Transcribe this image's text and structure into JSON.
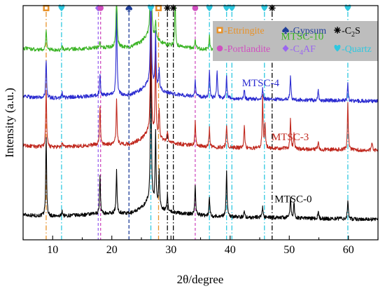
{
  "chart_data": {
    "type": "line",
    "xlabel": "2θ/degree",
    "ylabel": "Intensity (a.u.)",
    "xlim": [
      5,
      65
    ],
    "ylim": [
      0,
      10
    ],
    "x_ticks": [
      10,
      20,
      30,
      40,
      50,
      60
    ],
    "y_ticks": [],
    "grid": false,
    "baseline_points": [
      [
        5,
        1.08
      ],
      [
        7,
        1.03
      ],
      [
        9,
        1.01
      ],
      [
        11,
        1.0
      ],
      [
        13,
        1.04
      ],
      [
        15,
        1.06
      ],
      [
        17,
        1.1
      ],
      [
        19,
        1.12
      ],
      [
        21,
        1.15
      ],
      [
        23,
        1.12
      ],
      [
        25,
        1.35
      ],
      [
        26,
        1.6
      ],
      [
        27,
        1.5
      ],
      [
        29,
        1.25
      ],
      [
        31,
        1.15
      ],
      [
        33,
        1.1
      ],
      [
        35,
        1.05
      ],
      [
        37,
        1.0
      ],
      [
        39,
        1.0
      ],
      [
        41,
        0.98
      ],
      [
        43,
        0.95
      ],
      [
        45,
        0.96
      ],
      [
        47,
        0.95
      ],
      [
        49,
        0.95
      ],
      [
        51,
        0.92
      ],
      [
        53,
        0.92
      ],
      [
        55,
        0.9
      ],
      [
        57,
        0.9
      ],
      [
        59,
        0.9
      ],
      [
        61,
        0.88
      ],
      [
        63,
        0.88
      ],
      [
        65,
        0.87
      ]
    ],
    "series": [
      {
        "name": "MTSC-0",
        "color": "#000000",
        "offset": 0.0,
        "label_x": 47.5,
        "label_y": 1.6,
        "peaks": [
          [
            8.9,
            3.3
          ],
          [
            11.6,
            0.25
          ],
          [
            18.0,
            1.6
          ],
          [
            20.8,
            1.8
          ],
          [
            26.6,
            7.5
          ],
          [
            27.4,
            3.2
          ],
          [
            28.0,
            1.5
          ],
          [
            29.4,
            0.7
          ],
          [
            34.1,
            1.3
          ],
          [
            36.5,
            0.8
          ],
          [
            39.4,
            2.0
          ],
          [
            42.4,
            0.3
          ],
          [
            45.5,
            0.45
          ],
          [
            50.2,
            0.9
          ],
          [
            50.8,
            0.7
          ],
          [
            54.9,
            0.35
          ],
          [
            59.9,
            0.8
          ]
        ]
      },
      {
        "name": "MTSC-3",
        "color": "#c0281e",
        "offset": 2.95,
        "label_x": 47.0,
        "label_y": 4.25,
        "peaks": [
          [
            8.9,
            2.4
          ],
          [
            11.6,
            0.2
          ],
          [
            18.0,
            1.6
          ],
          [
            20.8,
            1.9
          ],
          [
            26.6,
            7.0
          ],
          [
            27.4,
            3.6
          ],
          [
            28.0,
            1.2
          ],
          [
            29.4,
            0.5
          ],
          [
            34.1,
            1.0
          ],
          [
            36.5,
            0.8
          ],
          [
            39.4,
            1.0
          ],
          [
            42.4,
            1.0
          ],
          [
            45.5,
            2.2
          ],
          [
            45.9,
            1.0
          ],
          [
            50.2,
            1.3
          ],
          [
            50.8,
            0.7
          ],
          [
            54.9,
            0.4
          ],
          [
            59.9,
            2.0
          ],
          [
            64.0,
            0.35
          ]
        ]
      },
      {
        "name": "MTSC-4",
        "color": "#2b2bd0",
        "offset": 5.05,
        "label_x": 42.0,
        "label_y": 6.55,
        "peaks": [
          [
            8.9,
            1.6
          ],
          [
            11.6,
            0.2
          ],
          [
            18.0,
            0.9
          ],
          [
            20.8,
            3.8
          ],
          [
            26.6,
            5.8
          ],
          [
            27.4,
            2.4
          ],
          [
            28.0,
            0.8
          ],
          [
            34.1,
            0.7
          ],
          [
            36.5,
            1.2
          ],
          [
            37.8,
            1.2
          ],
          [
            39.4,
            0.9
          ],
          [
            42.4,
            0.4
          ],
          [
            45.5,
            0.45
          ],
          [
            50.2,
            1.0
          ],
          [
            54.9,
            0.4
          ],
          [
            59.9,
            0.7
          ]
        ]
      },
      {
        "name": "MTSC-10",
        "color": "#3cb426",
        "offset": 7.1,
        "label_x": 48.6,
        "label_y": 8.55,
        "peaks": [
          [
            8.9,
            0.9
          ],
          [
            11.6,
            0.15
          ],
          [
            18.0,
            0.25
          ],
          [
            20.8,
            3.0
          ],
          [
            26.6,
            7.0
          ],
          [
            27.4,
            0.8
          ],
          [
            30.7,
            2.0
          ],
          [
            34.1,
            0.4
          ],
          [
            36.5,
            0.6
          ],
          [
            39.4,
            0.5
          ],
          [
            40.2,
            0.6
          ],
          [
            42.4,
            1.0
          ],
          [
            45.5,
            0.4
          ],
          [
            50.2,
            0.9
          ],
          [
            54.9,
            0.3
          ],
          [
            59.9,
            0.6
          ]
        ]
      }
    ],
    "reference_lines": [
      {
        "x": 8.9,
        "phase": "ettringite"
      },
      {
        "x": 11.5,
        "phase": "quartz"
      },
      {
        "x": 17.7,
        "phase": "c4af"
      },
      {
        "x": 18.1,
        "phase": "portlandite"
      },
      {
        "x": 22.9,
        "phase": "gypsum"
      },
      {
        "x": 26.6,
        "phase": "quartz"
      },
      {
        "x": 27.9,
        "phase": "ettringite"
      },
      {
        "x": 29.4,
        "phase": "c2s"
      },
      {
        "x": 30.4,
        "phase": "c2s"
      },
      {
        "x": 34.1,
        "phase": "portlandite"
      },
      {
        "x": 36.5,
        "phase": "quartz"
      },
      {
        "x": 39.4,
        "phase": "quartz"
      },
      {
        "x": 40.3,
        "phase": "quartz"
      },
      {
        "x": 45.8,
        "phase": "quartz"
      },
      {
        "x": 47.1,
        "phase": "c2s"
      },
      {
        "x": 59.9,
        "phase": "quartz"
      }
    ],
    "phases": {
      "ettringite": {
        "label": "-Ettringite",
        "color": "#e8922a",
        "marker": "square-outline"
      },
      "gypsum": {
        "label": "-Gypsum",
        "color": "#1f3e99",
        "marker": "spade"
      },
      "c2s": {
        "label": "-C",
        "sub": "2",
        "after": "S",
        "color": "#000000",
        "marker": "asterisk"
      },
      "portlandite": {
        "label": "-Portlandite",
        "color": "#d04fc0",
        "marker": "circle"
      },
      "c4af": {
        "label": "-C",
        "sub": "4",
        "after": "AF",
        "color": "#9a66f0",
        "marker": "diamond"
      },
      "quartz": {
        "label": "-Quartz",
        "color": "#2ec8e0",
        "marker": "heart"
      }
    },
    "legend": {
      "placement": "top-right",
      "rows": [
        [
          "ettringite",
          "gypsum",
          "c2s"
        ],
        [
          "portlandite",
          "c4af",
          "quartz"
        ]
      ]
    }
  }
}
